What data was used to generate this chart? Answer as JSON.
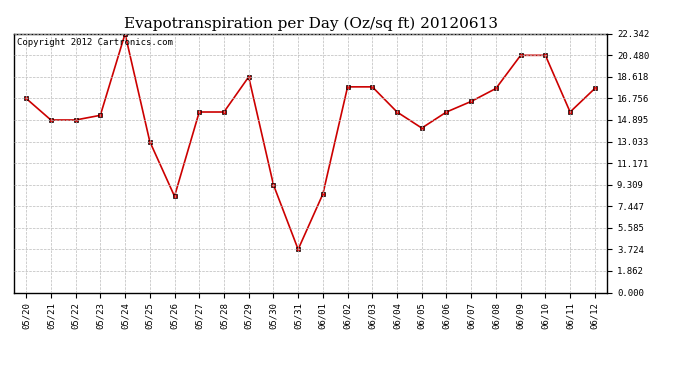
{
  "title": "Evapotranspiration per Day (Oz/sq ft) 20120613",
  "copyright_text": "Copyright 2012 Cartronics.com",
  "x_labels": [
    "05/20",
    "05/21",
    "05/22",
    "05/23",
    "05/24",
    "05/25",
    "05/26",
    "05/27",
    "05/28",
    "05/29",
    "05/30",
    "05/31",
    "06/01",
    "06/02",
    "06/03",
    "06/04",
    "06/05",
    "06/06",
    "06/07",
    "06/08",
    "06/09",
    "06/10",
    "06/11",
    "06/12"
  ],
  "y_values": [
    16.756,
    14.895,
    14.895,
    15.3,
    22.342,
    13.033,
    8.309,
    15.585,
    15.585,
    18.618,
    9.309,
    3.724,
    8.5,
    17.756,
    17.756,
    15.585,
    14.2,
    15.585,
    16.5,
    17.618,
    20.48,
    20.48,
    15.585,
    17.618
  ],
  "line_color": "#cc0000",
  "marker": "s",
  "marker_size": 3,
  "bg_color": "#ffffff",
  "grid_color": "#aaaaaa",
  "y_ticks": [
    0.0,
    1.862,
    3.724,
    5.585,
    7.447,
    9.309,
    11.171,
    13.033,
    14.895,
    16.756,
    18.618,
    20.48,
    22.342
  ],
  "ylim_max": 22.342,
  "title_fontsize": 11,
  "copyright_fontsize": 6.5,
  "tick_fontsize": 6.5
}
